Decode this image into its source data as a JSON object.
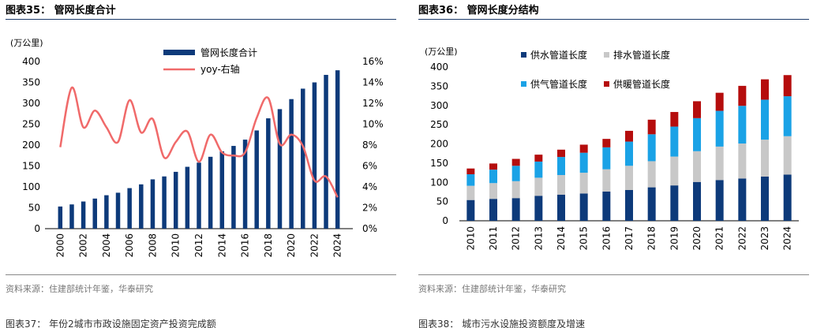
{
  "left_panel": {
    "title": "图表35：  管网长度合计",
    "source": "资料来源：住建部统计年鉴，华泰研究",
    "next_caption": "图表37：  年份2城市市政设施固定资产投资完成额",
    "chart_data": {
      "type": "bar",
      "unit": "(万公里)",
      "categories": [
        "2000",
        "2001",
        "2002",
        "2003",
        "2004",
        "2005",
        "2006",
        "2007",
        "2008",
        "2009",
        "2010",
        "2011",
        "2012",
        "2013",
        "2014",
        "2015",
        "2016",
        "2017",
        "2018",
        "2019",
        "2020",
        "2021",
        "2022",
        "2023",
        "2024"
      ],
      "x_tick_labels": [
        "2000",
        "2002",
        "2004",
        "2006",
        "2008",
        "2010",
        "2012",
        "2014",
        "2016",
        "2018",
        "2020",
        "2022",
        "2024"
      ],
      "series": [
        {
          "name": "管网长度合计",
          "type": "bar",
          "axis": "left",
          "color": "#0d3a7a",
          "values": [
            53,
            58,
            65,
            72,
            80,
            86,
            97,
            106,
            118,
            125,
            136,
            148,
            158,
            172,
            185,
            198,
            213,
            235,
            264,
            286,
            310,
            335,
            350,
            368,
            379
          ]
        },
        {
          "name": "yoy-右轴",
          "type": "line",
          "axis": "right",
          "color": "#f06a6a",
          "values": [
            7.8,
            13.5,
            9.7,
            11.3,
            9.7,
            8.3,
            12.3,
            9.2,
            10.5,
            6.8,
            8.3,
            9.3,
            6.4,
            9.0,
            7.3,
            7.0,
            7.3,
            10.6,
            12.5,
            8.1,
            9.0,
            7.9,
            4.6,
            5.0,
            3.0
          ]
        }
      ],
      "ylim_left": [
        0,
        400
      ],
      "yticks_left": [
        0,
        50,
        100,
        150,
        200,
        250,
        300,
        350,
        400
      ],
      "ylim_right": [
        0,
        16
      ],
      "yticks_right": [
        "0%",
        "2%",
        "4%",
        "6%",
        "8%",
        "10%",
        "12%",
        "14%",
        "16%"
      ],
      "legend_position": "top-right"
    }
  },
  "right_panel": {
    "title": "图表36：  管网长度分结构",
    "source": "资料来源：住建部统计年鉴，华泰研究",
    "next_caption": "图表38：  城市污水设施投资额度及增速",
    "chart_data": {
      "type": "bar",
      "stacked": true,
      "unit": "(万公里)",
      "categories": [
        "2010",
        "2011",
        "2012",
        "2013",
        "2014",
        "2015",
        "2016",
        "2017",
        "2018",
        "2019",
        "2020",
        "2021",
        "2022",
        "2023",
        "2024"
      ],
      "series": [
        {
          "name": "供水管道长度",
          "color": "#0d3a7a",
          "values": [
            54,
            57,
            59,
            65,
            68,
            71,
            76,
            80,
            87,
            92,
            101,
            106,
            110,
            115,
            120
          ]
        },
        {
          "name": "排水管道长度",
          "color": "#c8c8c8",
          "values": [
            37,
            41,
            44,
            47,
            51,
            54,
            58,
            63,
            68,
            75,
            80,
            87,
            91,
            96,
            100
          ]
        },
        {
          "name": "供气管道长度",
          "color": "#1aa2e6",
          "values": [
            30,
            35,
            40,
            42,
            47,
            52,
            57,
            63,
            70,
            78,
            86,
            93,
            98,
            104,
            104
          ]
        },
        {
          "name": "供暖管道长度",
          "color": "#b50d0d",
          "values": [
            15,
            16,
            18,
            18,
            19,
            21,
            22,
            28,
            38,
            38,
            44,
            47,
            52,
            53,
            55
          ]
        }
      ],
      "ylim": [
        0,
        400
      ],
      "yticks": [
        0,
        50,
        100,
        150,
        200,
        250,
        300,
        350,
        400
      ],
      "legend_position": "top"
    }
  }
}
